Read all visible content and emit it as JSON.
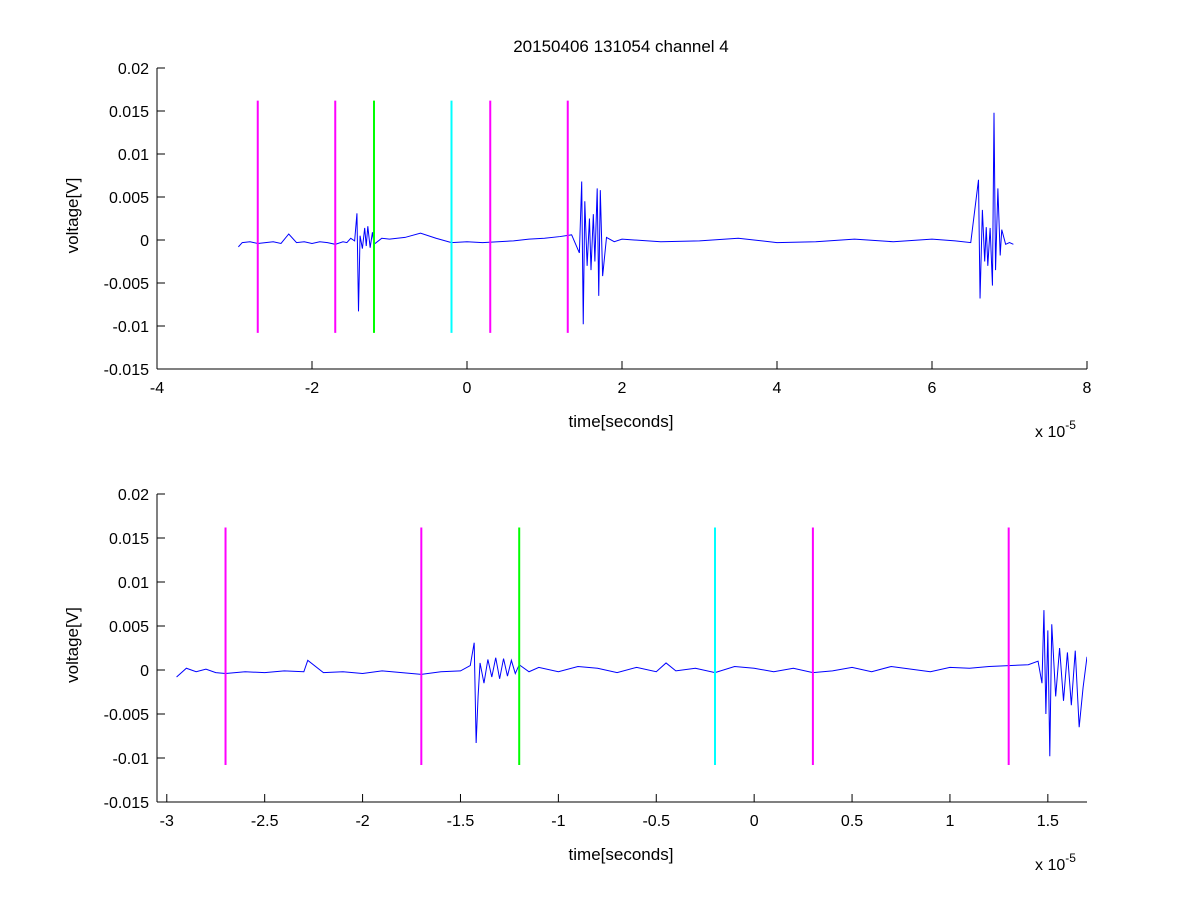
{
  "figure": {
    "title": "20150406 131054 channel 4"
  },
  "chart_data": [
    {
      "type": "line",
      "title": "20150406 131054 channel 4",
      "xlabel": "time[seconds]",
      "ylabel": "voltage[V]",
      "x_exponent_label": "x 10",
      "x_exponent": "-5",
      "x_scale": 1e-05,
      "xlim": [
        -4,
        8
      ],
      "ylim": [
        -0.015,
        0.02
      ],
      "x_ticks": [
        -4,
        -2,
        0,
        2,
        4,
        6,
        8
      ],
      "x_tick_labels": [
        "-4",
        "-2",
        "0",
        "2",
        "4",
        "6",
        "8"
      ],
      "y_ticks": [
        -0.015,
        -0.01,
        -0.005,
        0,
        0.005,
        0.01,
        0.015,
        0.02
      ],
      "y_tick_labels": [
        "-0.015",
        "-0.01",
        "-0.005",
        "0",
        "0.005",
        "0.01",
        "0.015",
        "0.02"
      ],
      "grid": false,
      "series": [
        {
          "color": "#0000ff",
          "x": [
            -2.95,
            -2.9,
            -2.8,
            -2.7,
            -2.6,
            -2.5,
            -2.4,
            -2.3,
            -2.2,
            -2.1,
            -2.0,
            -1.9,
            -1.8,
            -1.7,
            -1.6,
            -1.55,
            -1.5,
            -1.45,
            -1.42,
            -1.4,
            -1.38,
            -1.35,
            -1.32,
            -1.3,
            -1.28,
            -1.25,
            -1.22,
            -1.2,
            -1.1,
            -1.0,
            -0.8,
            -0.6,
            -0.4,
            -0.2,
            0.0,
            0.2,
            0.4,
            0.6,
            0.8,
            1.0,
            1.2,
            1.35,
            1.45,
            1.48,
            1.5,
            1.52,
            1.55,
            1.58,
            1.6,
            1.63,
            1.65,
            1.68,
            1.7,
            1.72,
            1.75,
            1.8,
            1.9,
            2.0,
            2.5,
            3.0,
            3.5,
            4.0,
            4.5,
            5.0,
            5.5,
            6.0,
            6.3,
            6.5,
            6.6,
            6.62,
            6.65,
            6.68,
            6.7,
            6.72,
            6.75,
            6.78,
            6.8,
            6.82,
            6.85,
            6.88,
            6.9,
            6.95,
            7.0,
            7.05
          ],
          "y": [
            -0.0008,
            -0.0003,
            -0.0002,
            -0.0004,
            -0.0003,
            -0.0002,
            -0.0004,
            0.0007,
            -0.0003,
            -0.0002,
            -0.0004,
            -0.0002,
            -0.0003,
            -0.0005,
            -0.0002,
            -0.0003,
            0.0002,
            -0.0001,
            0.0031,
            -0.0083,
            0.0005,
            -0.001,
            0.0014,
            -0.0007,
            0.0016,
            -0.0009,
            0.0009,
            -0.0005,
            0.0002,
            0.0001,
            0.0003,
            0.0008,
            0.0002,
            -0.0003,
            -0.0002,
            -0.0003,
            -0.0002,
            -0.0001,
            0.0001,
            0.0002,
            0.0004,
            0.0006,
            -0.0015,
            0.0068,
            -0.0098,
            0.0045,
            -0.003,
            0.0025,
            -0.0035,
            0.003,
            -0.0025,
            0.006,
            -0.0065,
            0.0058,
            -0.0042,
            0.0003,
            -0.0002,
            0.0001,
            -0.0002,
            -0.0001,
            0.0002,
            -0.0003,
            -0.0002,
            0.0001,
            -0.0002,
            0.0001,
            -0.0001,
            -0.0003,
            0.007,
            -0.0068,
            0.0035,
            -0.0025,
            0.0015,
            -0.003,
            0.0014,
            -0.0053,
            0.0148,
            -0.0035,
            0.006,
            -0.0018,
            0.0012,
            -0.0005,
            -0.0003,
            -0.0005
          ]
        }
      ],
      "vlines": [
        {
          "x": -2.7,
          "color": "#ff00ff",
          "y_range": [
            -0.0108,
            0.0162
          ]
        },
        {
          "x": -1.7,
          "color": "#ff00ff",
          "y_range": [
            -0.0108,
            0.0162
          ]
        },
        {
          "x": -1.2,
          "color": "#00ff00",
          "y_range": [
            -0.0108,
            0.0162
          ]
        },
        {
          "x": -0.2,
          "color": "#00ffff",
          "y_range": [
            -0.0108,
            0.0162
          ]
        },
        {
          "x": 0.3,
          "color": "#ff00ff",
          "y_range": [
            -0.0108,
            0.0162
          ]
        },
        {
          "x": 1.3,
          "color": "#ff00ff",
          "y_range": [
            -0.0108,
            0.0162
          ]
        }
      ]
    },
    {
      "type": "line",
      "title": "",
      "xlabel": "time[seconds]",
      "ylabel": "voltage[V]",
      "x_exponent_label": "x 10",
      "x_exponent": "-5",
      "x_scale": 1e-05,
      "xlim": [
        -3.05,
        1.7
      ],
      "ylim": [
        -0.015,
        0.02
      ],
      "x_ticks": [
        -3,
        -2.5,
        -2,
        -1.5,
        -1,
        -0.5,
        0,
        0.5,
        1,
        1.5
      ],
      "x_tick_labels": [
        "-3",
        "-2.5",
        "-2",
        "-1.5",
        "-1",
        "-0.5",
        "0",
        "0.5",
        "1",
        "1.5"
      ],
      "y_ticks": [
        -0.015,
        -0.01,
        -0.005,
        0,
        0.005,
        0.01,
        0.015,
        0.02
      ],
      "y_tick_labels": [
        "-0.015",
        "-0.01",
        "-0.005",
        "0",
        "0.005",
        "0.01",
        "0.015",
        "0.02"
      ],
      "grid": false,
      "series": [
        {
          "color": "#0000ff",
          "x": [
            -2.95,
            -2.9,
            -2.85,
            -2.8,
            -2.75,
            -2.7,
            -2.6,
            -2.5,
            -2.4,
            -2.3,
            -2.28,
            -2.2,
            -2.1,
            -2.0,
            -1.9,
            -1.8,
            -1.7,
            -1.6,
            -1.5,
            -1.45,
            -1.43,
            -1.42,
            -1.41,
            -1.4,
            -1.38,
            -1.36,
            -1.34,
            -1.32,
            -1.3,
            -1.28,
            -1.26,
            -1.24,
            -1.22,
            -1.2,
            -1.15,
            -1.1,
            -1.0,
            -0.9,
            -0.8,
            -0.7,
            -0.6,
            -0.5,
            -0.45,
            -0.4,
            -0.3,
            -0.2,
            -0.1,
            0.0,
            0.1,
            0.2,
            0.3,
            0.4,
            0.5,
            0.6,
            0.7,
            0.8,
            0.9,
            1.0,
            1.1,
            1.2,
            1.3,
            1.4,
            1.45,
            1.47,
            1.48,
            1.49,
            1.5,
            1.51,
            1.52,
            1.54,
            1.56,
            1.58,
            1.6,
            1.62,
            1.64,
            1.66,
            1.68,
            1.7
          ],
          "y": [
            -0.0008,
            0.0002,
            -0.0002,
            0.0001,
            -0.0003,
            -0.0004,
            -0.0002,
            -0.0003,
            -0.0001,
            -0.0002,
            0.0011,
            -0.0003,
            -0.0002,
            -0.0004,
            -0.0001,
            -0.0003,
            -0.0005,
            -0.0002,
            -0.0001,
            0.0005,
            0.0031,
            -0.0083,
            -0.003,
            0.0008,
            -0.0015,
            0.0012,
            -0.0008,
            0.0014,
            -0.001,
            0.0013,
            -0.0007,
            0.0011,
            -0.0004,
            0.0006,
            -0.0002,
            0.0003,
            -0.0002,
            0.0004,
            0.0002,
            -0.0003,
            0.0003,
            -0.0002,
            0.0008,
            -0.0001,
            0.0002,
            -0.0003,
            0.0004,
            0.0002,
            -0.0002,
            0.0002,
            -0.0003,
            -0.0001,
            0.0003,
            -0.0002,
            0.0004,
            0.0001,
            -0.0002,
            0.0003,
            0.0002,
            0.0004,
            0.0005,
            0.0006,
            0.001,
            -0.0015,
            0.0068,
            -0.005,
            0.0045,
            -0.0098,
            0.0052,
            -0.003,
            0.0025,
            -0.0035,
            0.002,
            -0.004,
            0.0022,
            -0.0065,
            -0.002,
            0.0015
          ]
        }
      ],
      "vlines": [
        {
          "x": -2.7,
          "color": "#ff00ff",
          "y_range": [
            -0.0108,
            0.0162
          ]
        },
        {
          "x": -1.7,
          "color": "#ff00ff",
          "y_range": [
            -0.0108,
            0.0162
          ]
        },
        {
          "x": -1.2,
          "color": "#00ff00",
          "y_range": [
            -0.0108,
            0.0162
          ]
        },
        {
          "x": -0.2,
          "color": "#00ffff",
          "y_range": [
            -0.0108,
            0.0162
          ]
        },
        {
          "x": 0.3,
          "color": "#ff00ff",
          "y_range": [
            -0.0108,
            0.0162
          ]
        },
        {
          "x": 1.3,
          "color": "#ff00ff",
          "y_range": [
            -0.0108,
            0.0162
          ]
        }
      ]
    }
  ]
}
